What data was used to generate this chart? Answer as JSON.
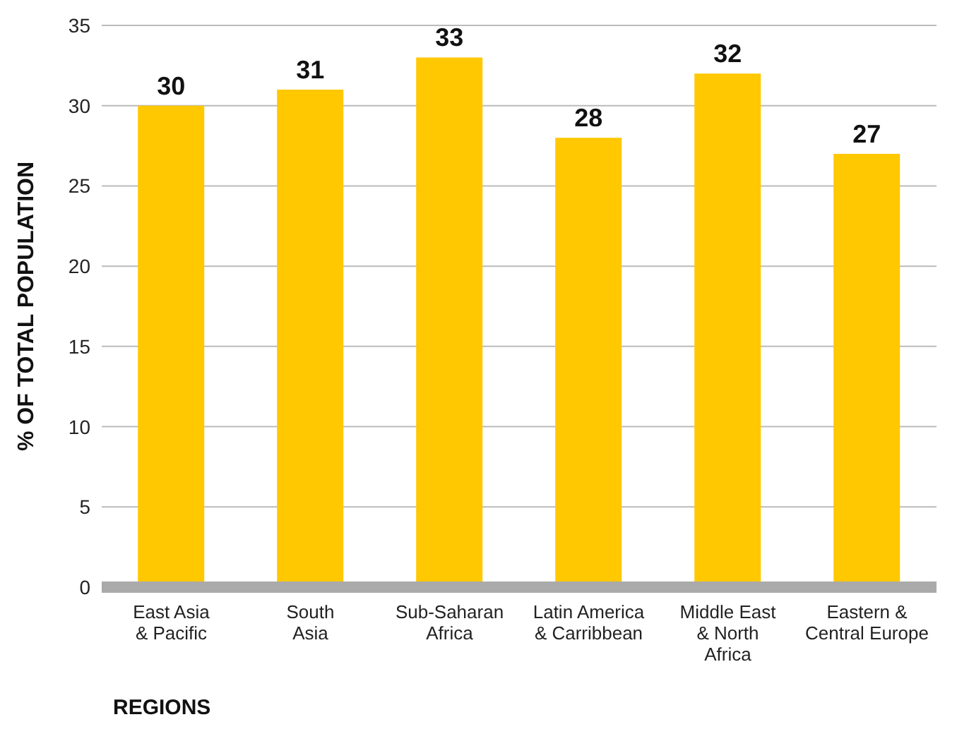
{
  "chart_data": {
    "type": "bar",
    "xlabel": "REGIONS",
    "ylabel": "% OF TOTAL POPULATION",
    "categories": [
      "East Asia\n& Pacific",
      "South\nAsia",
      "Sub-Saharan\nAfrica",
      "Latin America\n& Carribbean",
      "Middle East\n& North\nAfrica",
      "Eastern &\nCentral Europe"
    ],
    "values": [
      30,
      31,
      33,
      28,
      32,
      27
    ],
    "color": "#ffc800",
    "ylim": [
      0,
      35
    ],
    "yticks": [
      0,
      5,
      10,
      15,
      20,
      25,
      30,
      35
    ],
    "grid": "y",
    "data_labels": true
  }
}
